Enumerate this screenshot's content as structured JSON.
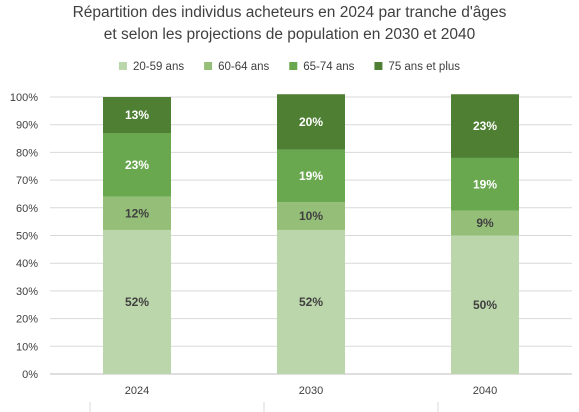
{
  "chart_data": {
    "type": "bar",
    "stacked": true,
    "title": "Répartition des individus acheteurs en 2024  par tranche d'âges",
    "subtitle": "et selon les projections de population en 2030 et 2040",
    "categories": [
      "2024",
      "2030",
      "2040"
    ],
    "series": [
      {
        "name": "20-59 ans",
        "values": [
          52,
          52,
          50
        ],
        "labels": [
          "52%",
          "52%",
          "50%"
        ],
        "color": "#bcd6ab",
        "label_color": "#404040"
      },
      {
        "name": "60-64 ans",
        "values": [
          12,
          10,
          9
        ],
        "labels": [
          "12%",
          "10%",
          "9%"
        ],
        "color": "#95bf79",
        "label_color": "#404040"
      },
      {
        "name": "65-74 ans",
        "values": [
          23,
          19,
          19
        ],
        "labels": [
          "23%",
          "19%",
          "19%"
        ],
        "color": "#6aa84f",
        "label_color": "#ffffff"
      },
      {
        "name": "75 ans et plus",
        "values": [
          13,
          20,
          23
        ],
        "labels": [
          "13%",
          "20%",
          "23%"
        ],
        "color": "#4e7f33",
        "label_color": "#ffffff"
      }
    ],
    "ylim": [
      0,
      100
    ],
    "yticks": [
      "0%",
      "10%",
      "20%",
      "30%",
      "40%",
      "50%",
      "60%",
      "70%",
      "80%",
      "90%",
      "100%"
    ],
    "grid": true,
    "legend": "top"
  }
}
